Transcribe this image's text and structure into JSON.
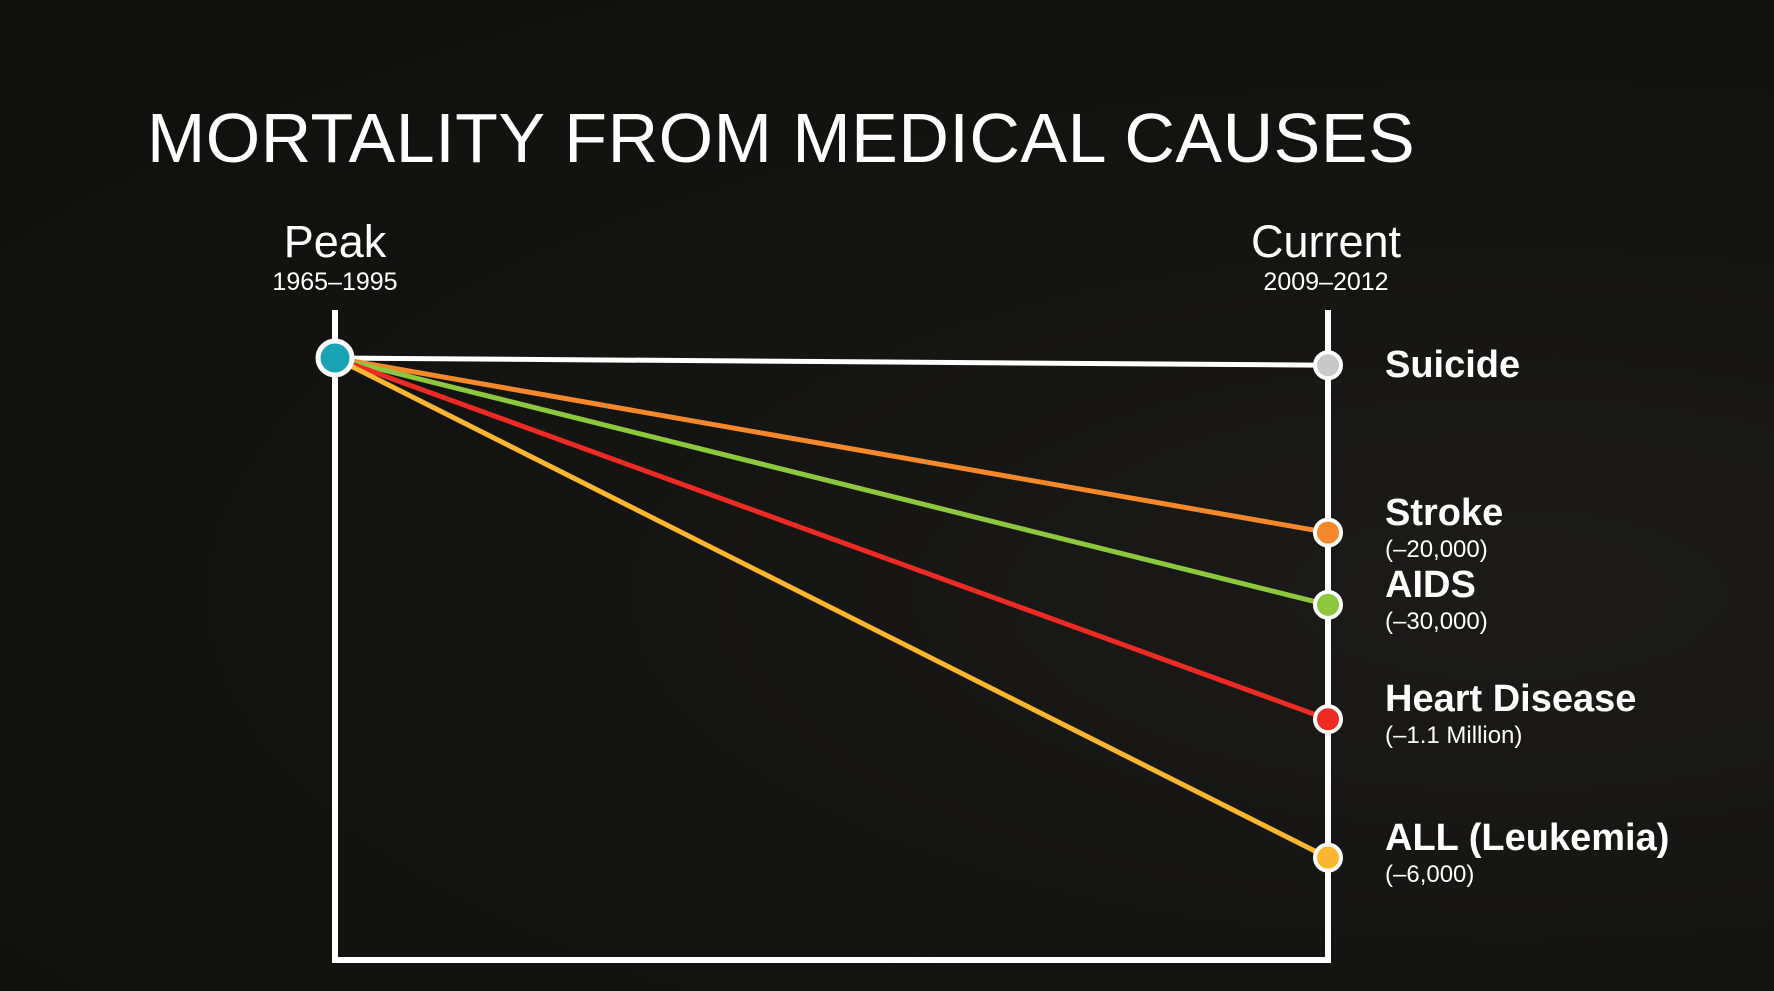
{
  "title": "MORTALITY FROM MEDICAL CAUSES",
  "columns": {
    "peak": {
      "label": "Peak",
      "years": "1965–1995"
    },
    "current": {
      "label": "Current",
      "years": "2009–2012"
    }
  },
  "colors": {
    "background": "#111110",
    "axis": "#ffffff",
    "peak_dot": "#1aa3b5"
  },
  "chart_data": {
    "type": "line",
    "x": [
      "Peak",
      "Current"
    ],
    "series": [
      {
        "name": "Suicide",
        "change": "",
        "color": "#ffffff",
        "dot_color": "#c8c8c8",
        "relative_values": [
          1.0,
          0.988
        ]
      },
      {
        "name": "Stroke",
        "change": "(–20,000)",
        "color": "#f5882a",
        "dot_color": "#f5882a",
        "relative_values": [
          1.0,
          0.71
        ]
      },
      {
        "name": "AIDS",
        "change": "(–30,000)",
        "color": "#8dc63f",
        "dot_color": "#8dc63f",
        "relative_values": [
          1.0,
          0.59
        ]
      },
      {
        "name": "Heart Disease",
        "change": "(–1.1 Million)",
        "color": "#ee2a24",
        "dot_color": "#ee2a24",
        "relative_values": [
          1.0,
          0.4
        ]
      },
      {
        "name": "ALL (Leukemia)",
        "change": "(–6,000)",
        "color": "#fbb630",
        "dot_color": "#fbb630",
        "relative_values": [
          1.0,
          0.17
        ]
      }
    ],
    "ylim": [
      0,
      1
    ]
  }
}
